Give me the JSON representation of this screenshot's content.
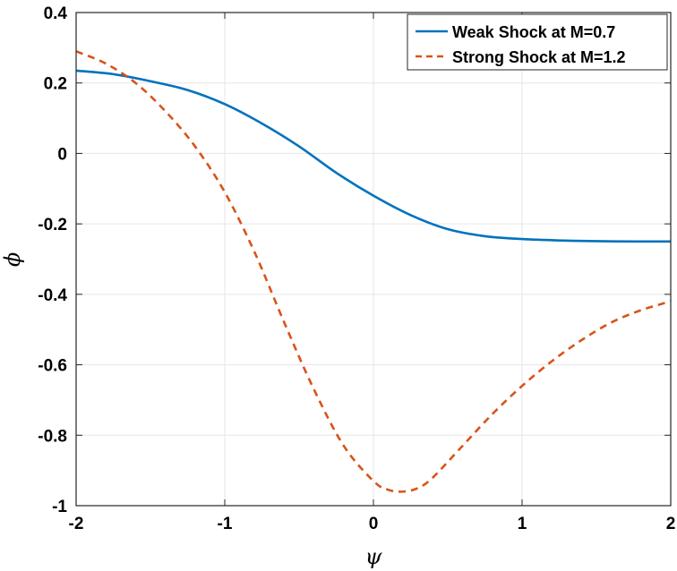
{
  "chart_data": {
    "type": "line",
    "xlabel": "ψ",
    "ylabel": "ϕ",
    "xlim": [
      -2,
      2
    ],
    "ylim": [
      -1,
      0.4
    ],
    "xticks": [
      -2,
      -1,
      0,
      1,
      2
    ],
    "xtick_labels": [
      "-2",
      "-1",
      "0",
      "1",
      "2"
    ],
    "yticks": [
      -1,
      -0.8,
      -0.6,
      -0.4,
      -0.2,
      0,
      0.2,
      0.4
    ],
    "ytick_labels": [
      "-1",
      "-0.8",
      "-0.6",
      "-0.4",
      "-0.2",
      "0",
      "0.2",
      "0.4"
    ],
    "grid": true,
    "legend_position": "top-right",
    "series": [
      {
        "name": "Weak Shock at M=0.7",
        "color": "#0072BD",
        "style": "solid",
        "x": [
          -2.0,
          -1.75,
          -1.5,
          -1.25,
          -1.0,
          -0.75,
          -0.5,
          -0.25,
          0.0,
          0.25,
          0.5,
          0.75,
          1.0,
          1.25,
          1.5,
          1.75,
          2.0
        ],
        "y": [
          0.235,
          0.225,
          0.205,
          0.18,
          0.14,
          0.085,
          0.02,
          -0.055,
          -0.12,
          -0.175,
          -0.215,
          -0.235,
          -0.243,
          -0.247,
          -0.249,
          -0.25,
          -0.25
        ]
      },
      {
        "name": "Strong Shock at M=1.2",
        "color": "#D95319",
        "style": "dashed",
        "x": [
          -2.0,
          -1.8,
          -1.6,
          -1.4,
          -1.2,
          -1.0,
          -0.8,
          -0.6,
          -0.4,
          -0.2,
          0.0,
          0.1,
          0.2,
          0.3,
          0.4,
          0.6,
          0.8,
          1.0,
          1.2,
          1.4,
          1.6,
          1.8,
          2.0
        ],
        "y": [
          0.29,
          0.255,
          0.2,
          0.12,
          0.02,
          -0.11,
          -0.28,
          -0.48,
          -0.67,
          -0.83,
          -0.93,
          -0.955,
          -0.96,
          -0.95,
          -0.92,
          -0.83,
          -0.74,
          -0.66,
          -0.59,
          -0.53,
          -0.48,
          -0.445,
          -0.42
        ]
      }
    ]
  }
}
